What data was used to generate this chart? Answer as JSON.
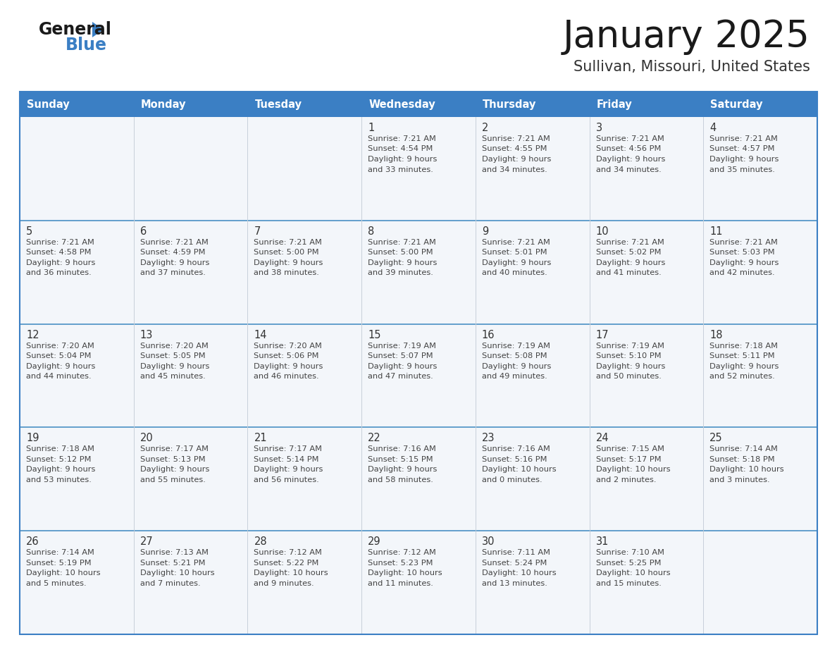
{
  "title": "January 2025",
  "subtitle": "Sullivan, Missouri, United States",
  "header_color": "#3b7fc4",
  "header_text_color": "#ffffff",
  "cell_bg_even": "#eef2f7",
  "cell_bg_odd": "#ffffff",
  "border_color": "#3b7fc4",
  "row_divider_color": "#4a90c4",
  "text_color": "#444444",
  "days_of_week": [
    "Sunday",
    "Monday",
    "Tuesday",
    "Wednesday",
    "Thursday",
    "Friday",
    "Saturday"
  ],
  "calendar_data": [
    [
      {
        "day": "",
        "sunrise": "",
        "sunset": "",
        "daylight": ""
      },
      {
        "day": "",
        "sunrise": "",
        "sunset": "",
        "daylight": ""
      },
      {
        "day": "",
        "sunrise": "",
        "sunset": "",
        "daylight": ""
      },
      {
        "day": "1",
        "sunrise": "7:21 AM",
        "sunset": "4:54 PM",
        "daylight": "9 hours\nand 33 minutes."
      },
      {
        "day": "2",
        "sunrise": "7:21 AM",
        "sunset": "4:55 PM",
        "daylight": "9 hours\nand 34 minutes."
      },
      {
        "day": "3",
        "sunrise": "7:21 AM",
        "sunset": "4:56 PM",
        "daylight": "9 hours\nand 34 minutes."
      },
      {
        "day": "4",
        "sunrise": "7:21 AM",
        "sunset": "4:57 PM",
        "daylight": "9 hours\nand 35 minutes."
      }
    ],
    [
      {
        "day": "5",
        "sunrise": "7:21 AM",
        "sunset": "4:58 PM",
        "daylight": "9 hours\nand 36 minutes."
      },
      {
        "day": "6",
        "sunrise": "7:21 AM",
        "sunset": "4:59 PM",
        "daylight": "9 hours\nand 37 minutes."
      },
      {
        "day": "7",
        "sunrise": "7:21 AM",
        "sunset": "5:00 PM",
        "daylight": "9 hours\nand 38 minutes."
      },
      {
        "day": "8",
        "sunrise": "7:21 AM",
        "sunset": "5:00 PM",
        "daylight": "9 hours\nand 39 minutes."
      },
      {
        "day": "9",
        "sunrise": "7:21 AM",
        "sunset": "5:01 PM",
        "daylight": "9 hours\nand 40 minutes."
      },
      {
        "day": "10",
        "sunrise": "7:21 AM",
        "sunset": "5:02 PM",
        "daylight": "9 hours\nand 41 minutes."
      },
      {
        "day": "11",
        "sunrise": "7:21 AM",
        "sunset": "5:03 PM",
        "daylight": "9 hours\nand 42 minutes."
      }
    ],
    [
      {
        "day": "12",
        "sunrise": "7:20 AM",
        "sunset": "5:04 PM",
        "daylight": "9 hours\nand 44 minutes."
      },
      {
        "day": "13",
        "sunrise": "7:20 AM",
        "sunset": "5:05 PM",
        "daylight": "9 hours\nand 45 minutes."
      },
      {
        "day": "14",
        "sunrise": "7:20 AM",
        "sunset": "5:06 PM",
        "daylight": "9 hours\nand 46 minutes."
      },
      {
        "day": "15",
        "sunrise": "7:19 AM",
        "sunset": "5:07 PM",
        "daylight": "9 hours\nand 47 minutes."
      },
      {
        "day": "16",
        "sunrise": "7:19 AM",
        "sunset": "5:08 PM",
        "daylight": "9 hours\nand 49 minutes."
      },
      {
        "day": "17",
        "sunrise": "7:19 AM",
        "sunset": "5:10 PM",
        "daylight": "9 hours\nand 50 minutes."
      },
      {
        "day": "18",
        "sunrise": "7:18 AM",
        "sunset": "5:11 PM",
        "daylight": "9 hours\nand 52 minutes."
      }
    ],
    [
      {
        "day": "19",
        "sunrise": "7:18 AM",
        "sunset": "5:12 PM",
        "daylight": "9 hours\nand 53 minutes."
      },
      {
        "day": "20",
        "sunrise": "7:17 AM",
        "sunset": "5:13 PM",
        "daylight": "9 hours\nand 55 minutes."
      },
      {
        "day": "21",
        "sunrise": "7:17 AM",
        "sunset": "5:14 PM",
        "daylight": "9 hours\nand 56 minutes."
      },
      {
        "day": "22",
        "sunrise": "7:16 AM",
        "sunset": "5:15 PM",
        "daylight": "9 hours\nand 58 minutes."
      },
      {
        "day": "23",
        "sunrise": "7:16 AM",
        "sunset": "5:16 PM",
        "daylight": "10 hours\nand 0 minutes."
      },
      {
        "day": "24",
        "sunrise": "7:15 AM",
        "sunset": "5:17 PM",
        "daylight": "10 hours\nand 2 minutes."
      },
      {
        "day": "25",
        "sunrise": "7:14 AM",
        "sunset": "5:18 PM",
        "daylight": "10 hours\nand 3 minutes."
      }
    ],
    [
      {
        "day": "26",
        "sunrise": "7:14 AM",
        "sunset": "5:19 PM",
        "daylight": "10 hours\nand 5 minutes."
      },
      {
        "day": "27",
        "sunrise": "7:13 AM",
        "sunset": "5:21 PM",
        "daylight": "10 hours\nand 7 minutes."
      },
      {
        "day": "28",
        "sunrise": "7:12 AM",
        "sunset": "5:22 PM",
        "daylight": "10 hours\nand 9 minutes."
      },
      {
        "day": "29",
        "sunrise": "7:12 AM",
        "sunset": "5:23 PM",
        "daylight": "10 hours\nand 11 minutes."
      },
      {
        "day": "30",
        "sunrise": "7:11 AM",
        "sunset": "5:24 PM",
        "daylight": "10 hours\nand 13 minutes."
      },
      {
        "day": "31",
        "sunrise": "7:10 AM",
        "sunset": "5:25 PM",
        "daylight": "10 hours\nand 15 minutes."
      },
      {
        "day": "",
        "sunrise": "",
        "sunset": "",
        "daylight": ""
      }
    ]
  ]
}
